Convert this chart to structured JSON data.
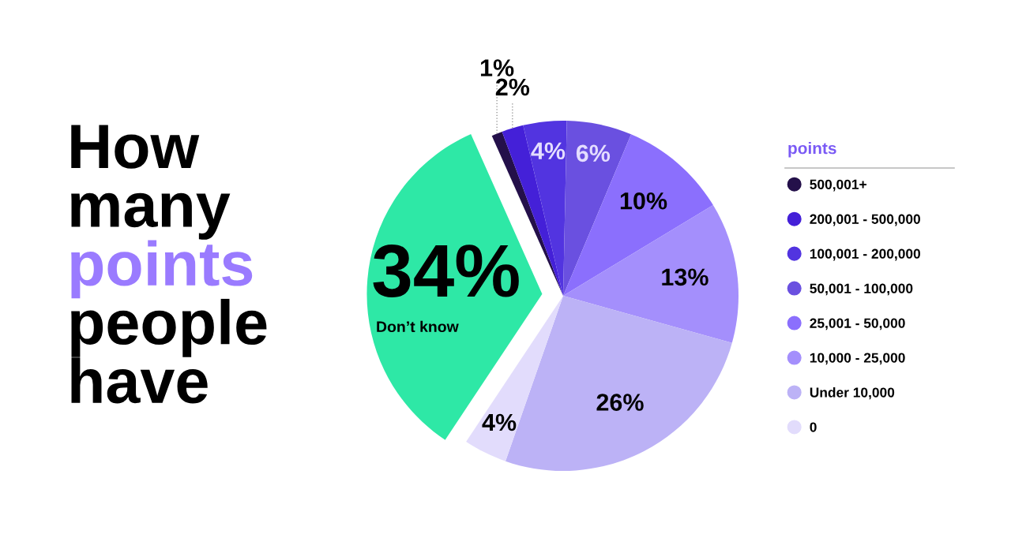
{
  "chart_data": {
    "type": "pie",
    "title": "How many points people have",
    "legend_title": "points",
    "legend": "right",
    "categories": [
      "500,001+",
      "200,001 - 500,000",
      "100,001 - 200,000",
      "50,001 - 100,000",
      "25,001 - 50,000",
      "10,000 - 25,000",
      "Under 10,000",
      "0",
      "Don’t know"
    ],
    "values": [
      1,
      2,
      4,
      6,
      10,
      13,
      26,
      4,
      34
    ],
    "colors": [
      "#24104a",
      "#4420d8",
      "#5234e0",
      "#6a50e0",
      "#8b6ffd",
      "#a48ffc",
      "#bcb2f6",
      "#e2dcfc",
      "#2ee8a6"
    ],
    "value_labels": [
      "1%",
      "2%",
      "4%",
      "6%",
      "10%",
      "13%",
      "26%",
      "4%",
      "34%"
    ]
  }
}
